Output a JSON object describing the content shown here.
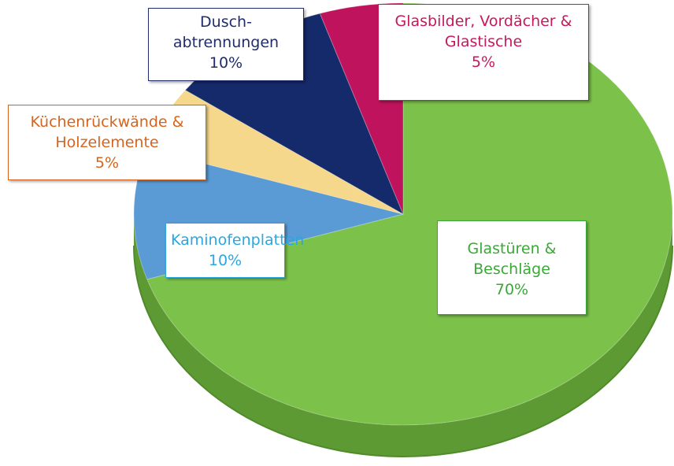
{
  "chart_data": {
    "type": "pie",
    "categories": [
      "Glastüren & Beschläge",
      "Kaminofenplatten",
      "Küchenrückwände & Holzelemente",
      "Dusch-abtrennungen",
      "Glasbilder, Vordächer & Glastische"
    ],
    "values": [
      70,
      10,
      5,
      10,
      5
    ],
    "value_labels": [
      "70%",
      "10%",
      "5%",
      "10%",
      "5%"
    ],
    "colors": [
      "#7cc24a",
      "#5b9bd5",
      "#f6d88c",
      "#152a6a",
      "#c0135d"
    ],
    "label_colors": [
      "#3aa836",
      "#2aa7e0",
      "#d6641e",
      "#1f2d6b",
      "#c8175d"
    ]
  }
}
